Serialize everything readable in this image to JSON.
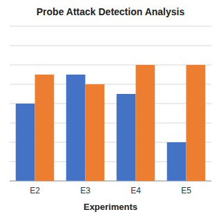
{
  "chart_data": {
    "type": "bar",
    "title": "Probe Attack Detection Analysis",
    "xlabel": "Experiments",
    "categories": [
      "E2",
      "E3",
      "E4",
      "E5"
    ],
    "series": [
      {
        "color": "#4472C4",
        "values": [
          99.2,
          99.5,
          99.3,
          98.8
        ]
      },
      {
        "color": "#ED7D31",
        "values": [
          99.5,
          99.4,
          99.6,
          99.6
        ]
      }
    ],
    "ylim": [
      98.4,
      100.0
    ],
    "yticks": [
      98.4,
      98.6,
      98.8,
      99.0,
      99.2,
      99.4,
      99.6,
      99.8,
      100.0
    ],
    "grid": true,
    "tick_labels": "x"
  }
}
